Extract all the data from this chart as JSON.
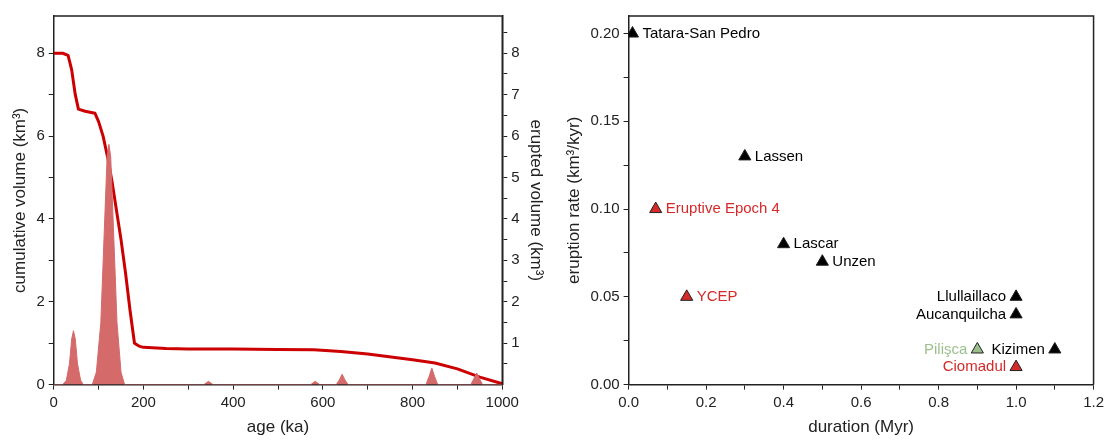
{
  "chart_data": [
    {
      "type": "line",
      "xlabel": "age (ka)",
      "ylabel": "cumulative volume (km³)",
      "y2label": "erupted volume (km³)",
      "xlim": [
        0,
        1000
      ],
      "xticks": [
        0,
        {
          "value": 100,
          "label": null
        },
        200,
        {
          "value": 300,
          "label": null
        },
        400,
        {
          "value": 500,
          "label": null
        },
        600,
        {
          "value": 700,
          "label": null
        },
        800,
        {
          "value": 900,
          "label": null
        },
        1000
      ],
      "ylim": [
        0,
        8.9
      ],
      "yticks": [
        0,
        {
          "value": 1,
          "label": null
        },
        2,
        {
          "value": 3,
          "label": null
        },
        4,
        {
          "value": 5,
          "label": null
        },
        6,
        {
          "value": 7,
          "label": null
        },
        8
      ],
      "y2lim": [
        0,
        8.9
      ],
      "y2ticks": [
        {
          "value": 0.5,
          "label": null
        },
        1,
        {
          "value": 1.5,
          "label": null
        },
        2,
        {
          "value": 2.5,
          "label": null
        },
        3,
        {
          "value": 3.5,
          "label": null
        },
        4,
        {
          "value": 4.5,
          "label": null
        },
        5,
        {
          "value": 5.5,
          "label": null
        },
        6,
        {
          "value": 6.5,
          "label": null
        },
        7,
        {
          "value": 7.5,
          "label": null
        },
        8,
        {
          "value": 8.5,
          "label": null
        }
      ],
      "series": [
        {
          "type": "area",
          "axis": "y2",
          "color": "#d46a6a",
          "x": [
            0,
            20,
            28,
            35,
            40,
            44,
            48,
            53,
            60,
            66,
            86,
            95,
            105,
            113,
            119,
            123,
            127,
            133,
            141,
            150,
            158,
            335,
            345,
            355,
            573,
            583,
            593,
            630,
            637,
            643,
            649,
            656,
            830,
            837,
            843,
            849,
            856,
            930,
            937,
            943,
            949,
            956,
            1000
          ],
          "values": [
            0,
            0,
            0.1,
            0.5,
            1.1,
            1.3,
            1.1,
            0.5,
            0.1,
            0,
            0,
            0.3,
            1.5,
            3.8,
            5.5,
            5.8,
            5.5,
            3.8,
            1.5,
            0.3,
            0,
            0,
            0.08,
            0,
            0,
            0.08,
            0,
            0,
            0.12,
            0.25,
            0.12,
            0,
            0,
            0.2,
            0.4,
            0.2,
            0,
            0,
            0.15,
            0.28,
            0.15,
            0,
            0
          ]
        },
        {
          "color": "#cc0000",
          "x": [
            0,
            20,
            32,
            40,
            48,
            55,
            70,
            92,
            100,
            110,
            120,
            130,
            140,
            150,
            160,
            170,
            180,
            190,
            200,
            250,
            300,
            400,
            500,
            580,
            640,
            700,
            800,
            850,
            900,
            950,
            1000
          ],
          "values": [
            8.0,
            8.0,
            7.95,
            7.6,
            7.0,
            6.65,
            6.6,
            6.55,
            6.35,
            6.0,
            5.5,
            4.9,
            4.2,
            3.5,
            2.7,
            1.8,
            1.0,
            0.93,
            0.9,
            0.87,
            0.86,
            0.86,
            0.85,
            0.84,
            0.8,
            0.74,
            0.6,
            0.52,
            0.38,
            0.18,
            0.02
          ]
        }
      ]
    },
    {
      "type": "scatter",
      "xlabel": "duration (Myr)",
      "ylabel": "eruption rate (km³/kyr)",
      "marker": "triangle",
      "xlim": [
        0,
        1.2
      ],
      "xticks": [
        {
          "value": 0,
          "label": "0.0"
        },
        {
          "value": 0.1,
          "label": null
        },
        {
          "value": 0.2,
          "label": "0.2"
        },
        {
          "value": 0.3,
          "label": null
        },
        {
          "value": 0.4,
          "label": "0.4"
        },
        {
          "value": 0.5,
          "label": null
        },
        {
          "value": 0.6,
          "label": "0.6"
        },
        {
          "value": 0.7,
          "label": null
        },
        {
          "value": 0.8,
          "label": "0.8"
        },
        {
          "value": 0.9,
          "label": null
        },
        {
          "value": 1.0,
          "label": "1.0"
        },
        {
          "value": 1.1,
          "label": null
        },
        {
          "value": 1.2,
          "label": "1.2"
        }
      ],
      "ylim": [
        0,
        0.21
      ],
      "yticks": [
        {
          "value": 0,
          "label": "0.00"
        },
        {
          "value": 0.025,
          "label": null
        },
        {
          "value": 0.05,
          "label": "0.05"
        },
        {
          "value": 0.075,
          "label": null
        },
        {
          "value": 0.1,
          "label": "0.10"
        },
        {
          "value": 0.125,
          "label": null
        },
        {
          "value": 0.15,
          "label": "0.15"
        },
        {
          "value": 0.175,
          "label": null
        },
        {
          "value": 0.2,
          "label": "0.20"
        }
      ],
      "series": [
        {
          "name": "Tatara-San Pedro",
          "color": "#000000",
          "x": [
            0.01
          ],
          "values": [
            0.2
          ]
        },
        {
          "name": "Lassen",
          "color": "#000000",
          "x": [
            0.3
          ],
          "values": [
            0.13
          ]
        },
        {
          "name": "Eruptive Epoch 4",
          "color": "#d42a2a",
          "x": [
            0.07
          ],
          "values": [
            0.1
          ]
        },
        {
          "name": "Lascar",
          "color": "#000000",
          "x": [
            0.4
          ],
          "values": [
            0.08
          ]
        },
        {
          "name": "Unzen",
          "color": "#000000",
          "x": [
            0.5
          ],
          "values": [
            0.07
          ]
        },
        {
          "name": "YCEP",
          "color": "#d42a2a",
          "x": [
            0.15
          ],
          "values": [
            0.05
          ]
        },
        {
          "name": "Llullaillaco",
          "color": "#000000",
          "x": [
            1.0
          ],
          "values": [
            0.05
          ]
        },
        {
          "name": "Aucanquilcha",
          "color": "#000000",
          "x": [
            1.0
          ],
          "values": [
            0.04
          ]
        },
        {
          "name": "Pilişca",
          "color": "#9bbf8c",
          "x": [
            0.9
          ],
          "values": [
            0.02
          ]
        },
        {
          "name": "Kizimen",
          "color": "#000000",
          "x": [
            1.1
          ],
          "values": [
            0.02
          ]
        },
        {
          "name": "Ciomadul",
          "color": "#d42a2a",
          "x": [
            1.0
          ],
          "values": [
            0.01
          ]
        }
      ]
    }
  ]
}
